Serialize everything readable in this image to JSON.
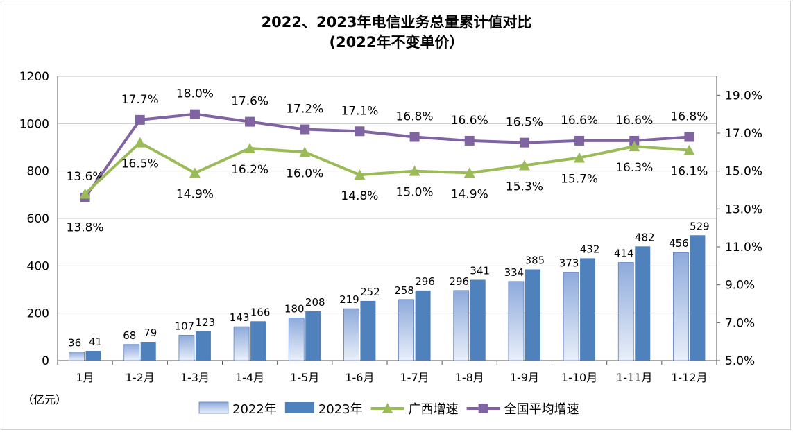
{
  "chart_data": {
    "type": "bar",
    "title": "2022、2023年电信业务总量累计值对比",
    "subtitle": "(2022年不变单价）",
    "unit_label": "（亿元）",
    "categories": [
      "1月",
      "1-2月",
      "1-3月",
      "1-4月",
      "1-5月",
      "1-6月",
      "1-7月",
      "1-8月",
      "1-9月",
      "1-10月",
      "1-11月",
      "1-12月"
    ],
    "y_left": {
      "min": 0,
      "max": 1200,
      "ticks": [
        "0",
        "200",
        "400",
        "600",
        "800",
        "1000",
        "1200"
      ]
    },
    "y_right": {
      "min": 5.0,
      "max": 20.0,
      "ticks": [
        "5.0%",
        "7.0%",
        "9.0%",
        "11.0%",
        "13.0%",
        "15.0%",
        "17.0%",
        "19.0%"
      ]
    },
    "bar_series": [
      {
        "name": "2022年",
        "color": "#8eaadb",
        "values": [
          36,
          68,
          107,
          143,
          180,
          219,
          258,
          296,
          334,
          373,
          414,
          456
        ]
      },
      {
        "name": "2023年",
        "color": "#4f81bd",
        "values": [
          41,
          79,
          123,
          166,
          208,
          252,
          296,
          341,
          385,
          432,
          482,
          529
        ]
      }
    ],
    "line_series": [
      {
        "name": "广西增速",
        "color": "#9bbb59",
        "axis": "right",
        "values": [
          13.8,
          16.5,
          14.9,
          16.2,
          16.0,
          14.8,
          15.0,
          14.9,
          15.3,
          15.7,
          16.3,
          16.1
        ],
        "labels": [
          "13.8%",
          "16.5%",
          "14.9%",
          "16.2%",
          "16.0%",
          "14.8%",
          "15.0%",
          "14.9%",
          "15.3%",
          "15.7%",
          "16.3%",
          "16.1%"
        ]
      },
      {
        "name": "全国平均增速",
        "color": "#8064a2",
        "axis": "right",
        "values": [
          13.6,
          17.7,
          18.0,
          17.6,
          17.2,
          17.1,
          16.8,
          16.6,
          16.5,
          16.6,
          16.6,
          16.8
        ],
        "labels": [
          "13.6%",
          "17.7%",
          "18.0%",
          "17.6%",
          "17.2%",
          "17.1%",
          "16.8%",
          "16.6%",
          "16.5%",
          "16.6%",
          "16.6%",
          "16.8%"
        ]
      }
    ],
    "grid": true,
    "legend": "bottom"
  }
}
